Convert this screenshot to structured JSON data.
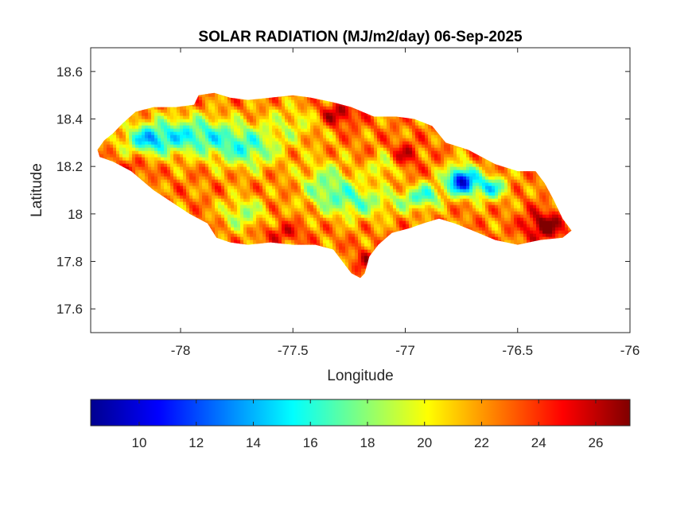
{
  "chart_data": {
    "type": "heatmap",
    "title": "SOLAR RADIATION (MJ/m2/day) 06-Sep-2025",
    "xlabel": "Longitude",
    "ylabel": "Latitude",
    "xlim": [
      -78.4,
      -76
    ],
    "ylim": [
      17.5,
      18.7
    ],
    "xticks": [
      -78,
      -77.5,
      -77,
      -76.5,
      -76
    ],
    "xtick_labels": [
      "-78",
      "-77.5",
      "-77",
      "-76.5",
      "-76"
    ],
    "yticks": [
      17.6,
      17.8,
      18,
      18.2,
      18.4,
      18.6
    ],
    "ytick_labels": [
      "17.6",
      "17.8",
      "18",
      "18.2",
      "18.4",
      "18.6"
    ],
    "colorbar": {
      "colormap": "jet",
      "range": [
        8.3,
        27.2
      ],
      "ticks": [
        10,
        12,
        14,
        16,
        18,
        20,
        22,
        24,
        26
      ],
      "tick_labels": [
        "10",
        "12",
        "14",
        "16",
        "18",
        "20",
        "22",
        "24",
        "26"
      ],
      "orientation": "horizontal"
    },
    "region_outline": [
      [
        -78.37,
        18.27
      ],
      [
        -78.34,
        18.31
      ],
      [
        -78.3,
        18.34
      ],
      [
        -78.26,
        18.38
      ],
      [
        -78.2,
        18.43
      ],
      [
        -78.12,
        18.45
      ],
      [
        -78.02,
        18.45
      ],
      [
        -77.94,
        18.46
      ],
      [
        -77.92,
        18.5
      ],
      [
        -77.85,
        18.51
      ],
      [
        -77.78,
        18.49
      ],
      [
        -77.7,
        18.48
      ],
      [
        -77.6,
        18.49
      ],
      [
        -77.5,
        18.5
      ],
      [
        -77.42,
        18.49
      ],
      [
        -77.32,
        18.47
      ],
      [
        -77.24,
        18.45
      ],
      [
        -77.14,
        18.41
      ],
      [
        -77.04,
        18.41
      ],
      [
        -76.96,
        18.4
      ],
      [
        -76.88,
        18.37
      ],
      [
        -76.82,
        18.3
      ],
      [
        -76.72,
        18.27
      ],
      [
        -76.6,
        18.21
      ],
      [
        -76.5,
        18.18
      ],
      [
        -76.42,
        18.18
      ],
      [
        -76.38,
        18.13
      ],
      [
        -76.34,
        18.06
      ],
      [
        -76.3,
        17.98
      ],
      [
        -76.26,
        17.93
      ],
      [
        -76.3,
        17.9
      ],
      [
        -76.4,
        17.89
      ],
      [
        -76.5,
        17.87
      ],
      [
        -76.6,
        17.89
      ],
      [
        -76.7,
        17.93
      ],
      [
        -76.78,
        17.96
      ],
      [
        -76.85,
        17.98
      ],
      [
        -76.92,
        17.96
      ],
      [
        -76.98,
        17.94
      ],
      [
        -77.06,
        17.92
      ],
      [
        -77.12,
        17.87
      ],
      [
        -77.16,
        17.82
      ],
      [
        -77.18,
        17.75
      ],
      [
        -77.2,
        17.73
      ],
      [
        -77.24,
        17.75
      ],
      [
        -77.28,
        17.8
      ],
      [
        -77.32,
        17.85
      ],
      [
        -77.4,
        17.87
      ],
      [
        -77.5,
        17.87
      ],
      [
        -77.6,
        17.88
      ],
      [
        -77.7,
        17.87
      ],
      [
        -77.78,
        17.88
      ],
      [
        -77.84,
        17.9
      ],
      [
        -77.88,
        17.96
      ],
      [
        -77.96,
        18.0
      ],
      [
        -78.04,
        18.05
      ],
      [
        -78.12,
        18.1
      ],
      [
        -78.22,
        18.18
      ],
      [
        -78.3,
        18.22
      ],
      [
        -78.36,
        18.24
      ]
    ],
    "field": {
      "base": 22.5,
      "features": [
        [
          -77.95,
          18.33,
          0.22,
          0.08,
          -6.5
        ],
        [
          -78.15,
          18.31,
          0.1,
          0.06,
          -5.5
        ],
        [
          -77.7,
          18.27,
          0.14,
          0.08,
          -5.0
        ],
        [
          -77.35,
          18.12,
          0.12,
          0.1,
          -4.5
        ],
        [
          -77.72,
          18.0,
          0.1,
          0.07,
          -4.0
        ],
        [
          -77.2,
          18.05,
          0.14,
          0.07,
          -4.5
        ],
        [
          -76.98,
          18.06,
          0.08,
          0.05,
          -3.5
        ],
        [
          -77.1,
          18.2,
          0.06,
          0.05,
          -3.5
        ],
        [
          -76.75,
          18.14,
          0.07,
          0.06,
          -12.0
        ],
        [
          -76.62,
          18.11,
          0.07,
          0.05,
          -7.0
        ],
        [
          -76.9,
          18.08,
          0.06,
          0.05,
          -5.0
        ],
        [
          -77.5,
          18.38,
          0.14,
          0.08,
          -2.5
        ],
        [
          -77.3,
          18.42,
          0.08,
          0.05,
          4.0
        ],
        [
          -76.38,
          17.95,
          0.09,
          0.06,
          5.0
        ],
        [
          -77.0,
          18.25,
          0.06,
          0.05,
          3.0
        ],
        [
          -77.18,
          17.8,
          0.05,
          0.05,
          2.5
        ],
        [
          -78.2,
          18.2,
          0.06,
          0.05,
          2.0
        ],
        [
          -77.55,
          17.92,
          0.1,
          0.04,
          2.5
        ]
      ]
    }
  }
}
